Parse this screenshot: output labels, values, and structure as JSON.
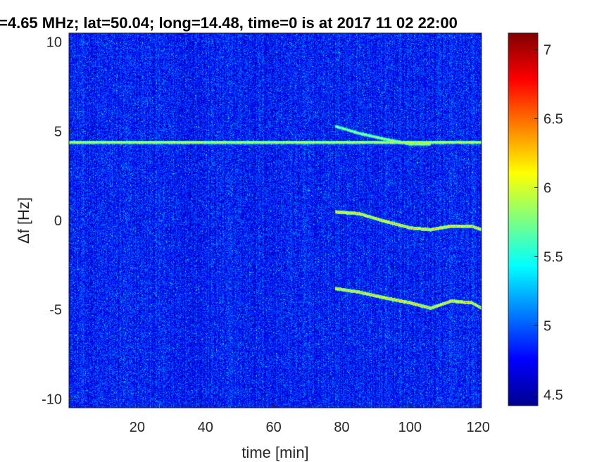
{
  "chart_data": {
    "type": "heatmap",
    "title": "=4.65 MHz;  lat=50.04; long=14.48, time=0 is at 2017 11 02 22:00",
    "xlabel": "time [min]",
    "ylabel": "Δf [Hz]",
    "xlim": [
      0,
      121
    ],
    "ylim": [
      -10.5,
      10.5
    ],
    "x_ticks": [
      "20",
      "40",
      "60",
      "80",
      "100",
      "120"
    ],
    "y_ticks": [
      "10",
      "5",
      "0",
      "-5",
      "-10"
    ],
    "colorbar": {
      "ticks": [
        "7",
        "6.5",
        "6",
        "5.5",
        "5",
        "4.5"
      ],
      "range": [
        4.42,
        7.12
      ],
      "colormap": "jet"
    },
    "background_level": 4.8,
    "features": [
      {
        "name": "constant carrier",
        "points": [
          [
            0,
            4.4
          ],
          [
            121,
            4.4
          ]
        ],
        "level": 6.1
      },
      {
        "name": "doppler trace upper",
        "points": [
          [
            78,
            5.3
          ],
          [
            85,
            4.9
          ],
          [
            92,
            4.6
          ],
          [
            100,
            4.3
          ],
          [
            106,
            4.3
          ]
        ],
        "level": 6.0
      },
      {
        "name": "doppler trace middle",
        "points": [
          [
            78,
            0.5
          ],
          [
            85,
            0.4
          ],
          [
            92,
            0.0
          ],
          [
            100,
            -0.4
          ],
          [
            106,
            -0.5
          ],
          [
            112,
            -0.3
          ],
          [
            118,
            -0.3
          ],
          [
            121,
            -0.5
          ]
        ],
        "level": 6.3
      },
      {
        "name": "doppler trace lower",
        "points": [
          [
            78,
            -3.8
          ],
          [
            85,
            -4.0
          ],
          [
            92,
            -4.3
          ],
          [
            100,
            -4.6
          ],
          [
            106,
            -4.9
          ],
          [
            112,
            -4.5
          ],
          [
            118,
            -4.6
          ],
          [
            121,
            -4.9
          ]
        ],
        "level": 6.3
      }
    ]
  }
}
